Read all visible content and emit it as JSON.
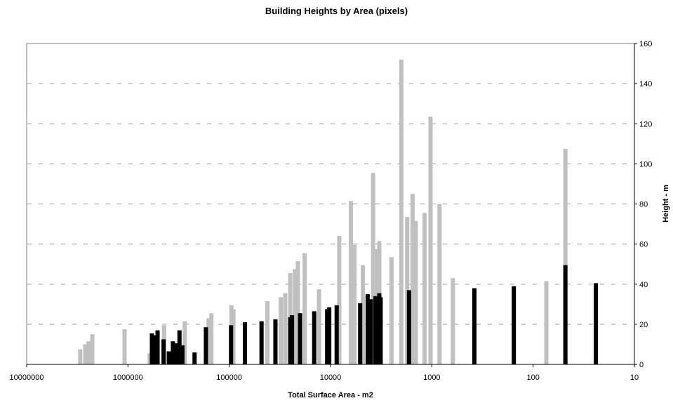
{
  "chart_data": {
    "type": "bar",
    "title": "Building Heights by Area (pixels)",
    "xlabel": "Total Surface Area - m2",
    "ylabel": "Height - m",
    "x_scale": "log",
    "x_reversed": true,
    "xlim": [
      10000000,
      10
    ],
    "ylim": [
      0,
      160
    ],
    "x_ticks": [
      10000000,
      1000000,
      100000,
      10000,
      1000,
      100,
      10
    ],
    "x_tick_labels": [
      "10000000",
      "1000000",
      "100000",
      "10000",
      "1000",
      "100",
      "10"
    ],
    "y_ticks": [
      0,
      20,
      40,
      60,
      80,
      100,
      120,
      140,
      160
    ],
    "y_axis_side": "right",
    "grid": "horizontal dashed",
    "series": [
      {
        "color": "#c0c0c0",
        "points": [
          {
            "x": 2960000,
            "y": 7.5
          },
          {
            "x": 2640000,
            "y": 10
          },
          {
            "x": 2450000,
            "y": 11.5
          },
          {
            "x": 2250000,
            "y": 15
          },
          {
            "x": 1080000,
            "y": 17.5
          },
          {
            "x": 610000,
            "y": 5.5
          },
          {
            "x": 440000,
            "y": 19.5
          },
          {
            "x": 275000,
            "y": 21.5
          },
          {
            "x": 160000,
            "y": 23
          },
          {
            "x": 150000,
            "y": 25.5
          },
          {
            "x": 95000,
            "y": 29.5
          },
          {
            "x": 91000,
            "y": 27.5
          },
          {
            "x": 42000,
            "y": 31.5
          },
          {
            "x": 31000,
            "y": 33.5
          },
          {
            "x": 28000,
            "y": 35.5
          },
          {
            "x": 25000,
            "y": 45.5
          },
          {
            "x": 22500,
            "y": 47.5
          },
          {
            "x": 21000,
            "y": 51.5
          },
          {
            "x": 18000,
            "y": 55.5
          },
          {
            "x": 13000,
            "y": 37.5
          },
          {
            "x": 8200,
            "y": 64
          },
          {
            "x": 6300,
            "y": 81.5
          },
          {
            "x": 5800,
            "y": 59.5
          },
          {
            "x": 4800,
            "y": 49.5
          },
          {
            "x": 3800,
            "y": 95.5
          },
          {
            "x": 3600,
            "y": 57.5
          },
          {
            "x": 3300,
            "y": 61.5
          },
          {
            "x": 2500,
            "y": 53.5
          },
          {
            "x": 2000,
            "y": 152
          },
          {
            "x": 1750,
            "y": 73.5
          },
          {
            "x": 1550,
            "y": 85
          },
          {
            "x": 1440,
            "y": 71.5
          },
          {
            "x": 1180,
            "y": 75.5
          },
          {
            "x": 1030,
            "y": 123.5
          },
          {
            "x": 840,
            "y": 80
          },
          {
            "x": 620,
            "y": 43
          },
          {
            "x": 74,
            "y": 41.5
          },
          {
            "x": 48,
            "y": 107.5
          }
        ]
      },
      {
        "color": "#000000",
        "points": [
          {
            "x": 580000,
            "y": 15.5
          },
          {
            "x": 550000,
            "y": 14.5
          },
          {
            "x": 510000,
            "y": 17
          },
          {
            "x": 445000,
            "y": 12.5
          },
          {
            "x": 395000,
            "y": 6.5
          },
          {
            "x": 360000,
            "y": 11.5
          },
          {
            "x": 335000,
            "y": 10.5
          },
          {
            "x": 310000,
            "y": 17
          },
          {
            "x": 290000,
            "y": 9.5
          },
          {
            "x": 220000,
            "y": 6
          },
          {
            "x": 170000,
            "y": 18.5
          },
          {
            "x": 96000,
            "y": 19.5
          },
          {
            "x": 70000,
            "y": 21
          },
          {
            "x": 48000,
            "y": 21.5
          },
          {
            "x": 35000,
            "y": 22.5
          },
          {
            "x": 25000,
            "y": 23.5
          },
          {
            "x": 24000,
            "y": 24.5
          },
          {
            "x": 20000,
            "y": 25.5
          },
          {
            "x": 14500,
            "y": 26.5
          },
          {
            "x": 10800,
            "y": 27.5
          },
          {
            "x": 10300,
            "y": 28.5
          },
          {
            "x": 8700,
            "y": 29.5
          },
          {
            "x": 5100,
            "y": 30.5
          },
          {
            "x": 4300,
            "y": 35
          },
          {
            "x": 4000,
            "y": 32.5
          },
          {
            "x": 3600,
            "y": 34
          },
          {
            "x": 3300,
            "y": 35.5
          },
          {
            "x": 3200,
            "y": 33.5
          },
          {
            "x": 1680,
            "y": 37
          },
          {
            "x": 380,
            "y": 38
          },
          {
            "x": 155,
            "y": 39
          },
          {
            "x": 48,
            "y": 49.5
          },
          {
            "x": 24,
            "y": 40.5
          }
        ]
      }
    ]
  }
}
